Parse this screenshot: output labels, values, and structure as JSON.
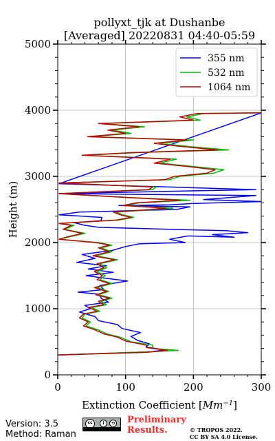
{
  "chart_data": {
    "type": "line",
    "title": [
      "pollyxt_tjk at Dushanbe",
      "[Averaged] 20220831 04:40-05:59"
    ],
    "xlabel_prefix": "Extinction Coefficient [",
    "xlabel_unit": "Mm",
    "xlabel_exp": "−1",
    "xlabel_suffix": "]",
    "ylabel": "Height (m)",
    "xlim": [
      0,
      300
    ],
    "ylim": [
      0,
      5000
    ],
    "xticks": [
      "0",
      "100",
      "200",
      "300"
    ],
    "yticks": [
      "0",
      "1000",
      "2000",
      "3000",
      "4000",
      "5000"
    ],
    "grid": true,
    "legend_position": "upper-right",
    "series": [
      {
        "name": "355 nm",
        "color": "#0000ff",
        "points": [
          [
            0,
            300
          ],
          [
            140,
            350
          ],
          [
            158,
            380
          ],
          [
            130,
            420
          ],
          [
            135,
            470
          ],
          [
            118,
            520
          ],
          [
            108,
            580
          ],
          [
            122,
            640
          ],
          [
            95,
            700
          ],
          [
            88,
            760
          ],
          [
            60,
            820
          ],
          [
            55,
            880
          ],
          [
            32,
            950
          ],
          [
            48,
            1000
          ],
          [
            40,
            1050
          ],
          [
            75,
            1100
          ],
          [
            65,
            1150
          ],
          [
            60,
            1220
          ],
          [
            30,
            1250
          ],
          [
            68,
            1290
          ],
          [
            62,
            1350
          ],
          [
            103,
            1420
          ],
          [
            70,
            1460
          ],
          [
            42,
            1500
          ],
          [
            82,
            1550
          ],
          [
            45,
            1600
          ],
          [
            72,
            1650
          ],
          [
            28,
            1700
          ],
          [
            55,
            1760
          ],
          [
            36,
            1820
          ],
          [
            80,
            1880
          ],
          [
            100,
            1940
          ],
          [
            120,
            1980
          ],
          [
            188,
            2000
          ],
          [
            165,
            2050
          ],
          [
            192,
            2100
          ],
          [
            260,
            2080
          ],
          [
            228,
            2120
          ],
          [
            280,
            2150
          ],
          [
            248,
            2180
          ],
          [
            165,
            2200
          ],
          [
            60,
            2230
          ],
          [
            40,
            2260
          ],
          [
            24,
            2300
          ],
          [
            64,
            2330
          ],
          [
            65,
            2380
          ],
          [
            2,
            2420
          ],
          [
            32,
            2460
          ],
          [
            175,
            2500
          ],
          [
            195,
            2540
          ],
          [
            90,
            2560
          ],
          [
            165,
            2570
          ],
          [
            198,
            2590
          ],
          [
            300,
            2620
          ],
          [
            215,
            2650
          ],
          [
            292,
            2710
          ],
          [
            2,
            2740
          ],
          [
            190,
            2780
          ],
          [
            292,
            2800
          ],
          [
            2,
            2890
          ],
          [
            300,
            3960
          ]
        ]
      },
      {
        "name": "532 nm",
        "color": "#00bb00",
        "points": [
          [
            0,
            300
          ],
          [
            138,
            350
          ],
          [
            178,
            370
          ],
          [
            140,
            400
          ],
          [
            140,
            450
          ],
          [
            108,
            500
          ],
          [
            92,
            570
          ],
          [
            72,
            620
          ],
          [
            60,
            680
          ],
          [
            42,
            740
          ],
          [
            48,
            800
          ],
          [
            36,
            860
          ],
          [
            40,
            920
          ],
          [
            62,
            960
          ],
          [
            50,
            1020
          ],
          [
            72,
            1060
          ],
          [
            64,
            1110
          ],
          [
            80,
            1160
          ],
          [
            60,
            1210
          ],
          [
            75,
            1260
          ],
          [
            58,
            1320
          ],
          [
            80,
            1380
          ],
          [
            62,
            1440
          ],
          [
            70,
            1500
          ],
          [
            58,
            1560
          ],
          [
            72,
            1620
          ],
          [
            62,
            1680
          ],
          [
            88,
            1740
          ],
          [
            56,
            1800
          ],
          [
            80,
            1860
          ],
          [
            64,
            1920
          ],
          [
            80,
            1960
          ],
          [
            60,
            2000
          ],
          [
            2,
            2050
          ],
          [
            15,
            2080
          ],
          [
            40,
            2140
          ],
          [
            10,
            2200
          ],
          [
            24,
            2260
          ],
          [
            2,
            2290
          ],
          [
            90,
            2340
          ],
          [
            112,
            2380
          ],
          [
            96,
            2420
          ],
          [
            86,
            2460
          ],
          [
            130,
            2490
          ],
          [
            170,
            2520
          ],
          [
            100,
            2560
          ],
          [
            120,
            2600
          ],
          [
            195,
            2640
          ],
          [
            108,
            2680
          ],
          [
            2,
            2740
          ],
          [
            140,
            2800
          ],
          [
            145,
            2840
          ],
          [
            2,
            2900
          ],
          [
            165,
            2950
          ],
          [
            180,
            3000
          ],
          [
            230,
            3050
          ],
          [
            245,
            3100
          ],
          [
            200,
            3150
          ],
          [
            150,
            3200
          ],
          [
            175,
            3260
          ],
          [
            40,
            3320
          ],
          [
            120,
            3360
          ],
          [
            252,
            3400
          ],
          [
            195,
            3450
          ],
          [
            150,
            3500
          ],
          [
            200,
            3550
          ],
          [
            48,
            3600
          ],
          [
            108,
            3650
          ],
          [
            80,
            3700
          ],
          [
            128,
            3750
          ],
          [
            65,
            3800
          ],
          [
            210,
            3850
          ],
          [
            190,
            3900
          ],
          [
            215,
            3950
          ],
          [
            300,
            3960
          ]
        ]
      },
      {
        "name": "1064 nm",
        "color": "#c00000",
        "points": [
          [
            0,
            300
          ],
          [
            130,
            340
          ],
          [
            162,
            370
          ],
          [
            132,
            410
          ],
          [
            130,
            450
          ],
          [
            100,
            510
          ],
          [
            88,
            570
          ],
          [
            68,
            620
          ],
          [
            55,
            680
          ],
          [
            38,
            740
          ],
          [
            45,
            800
          ],
          [
            32,
            860
          ],
          [
            38,
            920
          ],
          [
            58,
            960
          ],
          [
            46,
            1020
          ],
          [
            68,
            1060
          ],
          [
            60,
            1110
          ],
          [
            76,
            1160
          ],
          [
            56,
            1210
          ],
          [
            72,
            1260
          ],
          [
            54,
            1320
          ],
          [
            76,
            1380
          ],
          [
            58,
            1440
          ],
          [
            66,
            1500
          ],
          [
            54,
            1560
          ],
          [
            68,
            1620
          ],
          [
            58,
            1680
          ],
          [
            84,
            1740
          ],
          [
            52,
            1800
          ],
          [
            76,
            1860
          ],
          [
            60,
            1920
          ],
          [
            76,
            1960
          ],
          [
            56,
            2000
          ],
          [
            2,
            2050
          ],
          [
            12,
            2080
          ],
          [
            36,
            2140
          ],
          [
            8,
            2200
          ],
          [
            20,
            2260
          ],
          [
            2,
            2290
          ],
          [
            86,
            2340
          ],
          [
            108,
            2380
          ],
          [
            92,
            2420
          ],
          [
            82,
            2460
          ],
          [
            124,
            2490
          ],
          [
            160,
            2520
          ],
          [
            96,
            2560
          ],
          [
            116,
            2600
          ],
          [
            180,
            2640
          ],
          [
            104,
            2680
          ],
          [
            2,
            2740
          ],
          [
            134,
            2800
          ],
          [
            140,
            2840
          ],
          [
            2,
            2900
          ],
          [
            158,
            2950
          ],
          [
            172,
            3000
          ],
          [
            220,
            3050
          ],
          [
            232,
            3100
          ],
          [
            192,
            3150
          ],
          [
            142,
            3200
          ],
          [
            166,
            3260
          ],
          [
            36,
            3320
          ],
          [
            112,
            3360
          ],
          [
            236,
            3400
          ],
          [
            184,
            3450
          ],
          [
            142,
            3500
          ],
          [
            190,
            3550
          ],
          [
            44,
            3600
          ],
          [
            100,
            3650
          ],
          [
            74,
            3700
          ],
          [
            120,
            3750
          ],
          [
            60,
            3800
          ],
          [
            200,
            3850
          ],
          [
            180,
            3900
          ],
          [
            205,
            3950
          ],
          [
            300,
            3960
          ]
        ]
      }
    ]
  },
  "footer": {
    "version": "Version: 3.5",
    "method": "Method: Raman",
    "preliminary_line1": "Preliminary",
    "preliminary_line2": "Results.",
    "copyright_line1": "© TROPOS 2022.",
    "copyright_line2": "CC BY SA 4.0 License.",
    "license_badge_icons": [
      "cc-logo-icon",
      "by-icon",
      "sa-icon"
    ]
  }
}
